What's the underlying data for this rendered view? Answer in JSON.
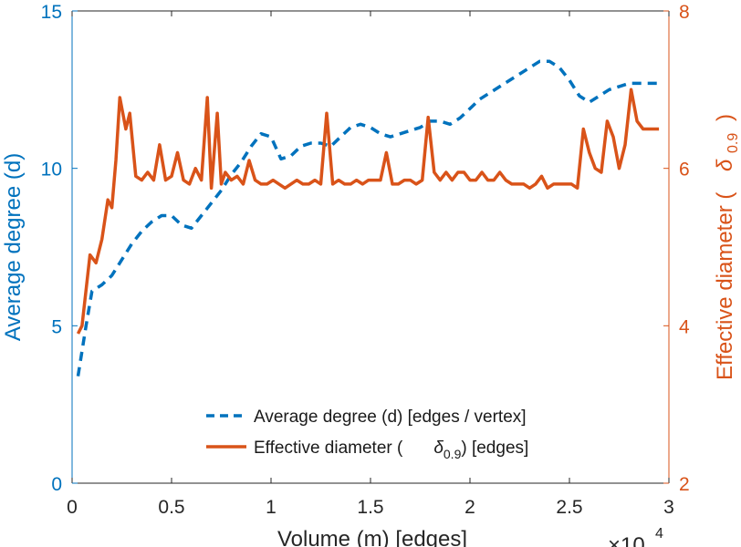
{
  "chart_data": {
    "type": "line",
    "xlabel": "Volume (m) [edges]",
    "x_exponent_label": "×10",
    "x_exponent_power": "4",
    "ylabel_left": "Average degree (d)",
    "ylabel_right": {
      "main": "Effective diameter (",
      "symbol": "δ",
      "subscript": "0.9",
      "close": ")"
    },
    "xlim": [
      0,
      30000
    ],
    "ylim_left": [
      0,
      15
    ],
    "ylim_right": [
      2,
      8
    ],
    "x_ticks": [
      0,
      5000,
      10000,
      15000,
      20000,
      25000,
      30000
    ],
    "x_tick_labels": [
      "0",
      "0.5",
      "1",
      "1.5",
      "2",
      "2.5",
      "3"
    ],
    "y_left_ticks": [
      0,
      5,
      10,
      15
    ],
    "y_left_tick_labels": [
      "0",
      "5",
      "10",
      "15"
    ],
    "y_right_ticks": [
      2,
      4,
      6,
      8
    ],
    "y_right_tick_labels": [
      "2",
      "4",
      "6",
      "8"
    ],
    "grid": false,
    "legend_position": "bottom-center",
    "colors": {
      "avg_degree": "#0072BD",
      "diameter": "#D95319",
      "axis_left": "#0072BD",
      "axis_right": "#D95319",
      "frame": "#262626"
    },
    "series": [
      {
        "name": "Average degree (d) [edges / vertex]",
        "axis": "left",
        "style": "dashed",
        "x": [
          300,
          700,
          1000,
          1500,
          2000,
          2500,
          3000,
          3500,
          4000,
          4500,
          5000,
          5500,
          6000,
          6500,
          7000,
          7500,
          8000,
          8500,
          9000,
          9500,
          10000,
          10500,
          11000,
          11500,
          12000,
          12500,
          13000,
          13500,
          14000,
          14500,
          15000,
          15500,
          16000,
          16500,
          17000,
          17500,
          18000,
          18500,
          19000,
          19500,
          20000,
          20500,
          21000,
          21500,
          22000,
          22500,
          23000,
          23500,
          24000,
          24500,
          25000,
          25500,
          26000,
          26500,
          27000,
          27500,
          28000,
          28500,
          29000,
          29500
        ],
        "y": [
          3.4,
          5.0,
          6.1,
          6.3,
          6.6,
          7.1,
          7.6,
          8.0,
          8.3,
          8.5,
          8.5,
          8.2,
          8.1,
          8.5,
          8.9,
          9.3,
          9.8,
          10.2,
          10.7,
          11.1,
          11.0,
          10.3,
          10.4,
          10.7,
          10.8,
          10.8,
          10.7,
          11.0,
          11.3,
          11.4,
          11.3,
          11.1,
          11.0,
          11.1,
          11.2,
          11.3,
          11.5,
          11.5,
          11.4,
          11.6,
          11.9,
          12.2,
          12.4,
          12.6,
          12.8,
          13.0,
          13.2,
          13.4,
          13.4,
          13.2,
          12.8,
          12.3,
          12.1,
          12.3,
          12.5,
          12.6,
          12.7,
          12.7,
          12.7,
          12.7
        ]
      },
      {
        "name": "Effective diameter (δ0.9) [edges]",
        "axis": "right",
        "style": "solid",
        "x": [
          300,
          500,
          900,
          1200,
          1500,
          1800,
          2000,
          2200,
          2400,
          2700,
          2900,
          3200,
          3500,
          3800,
          4100,
          4400,
          4700,
          5000,
          5300,
          5600,
          5900,
          6200,
          6500,
          6800,
          7000,
          7300,
          7500,
          7700,
          8000,
          8300,
          8600,
          8900,
          9200,
          9500,
          9800,
          10100,
          10400,
          10700,
          11000,
          11300,
          11600,
          11900,
          12200,
          12500,
          12800,
          13100,
          13400,
          13700,
          14000,
          14300,
          14600,
          14900,
          15200,
          15500,
          15800,
          16100,
          16400,
          16700,
          17000,
          17300,
          17600,
          17900,
          18200,
          18500,
          18800,
          19100,
          19400,
          19700,
          20000,
          20300,
          20600,
          20900,
          21200,
          21500,
          21800,
          22100,
          22400,
          22700,
          23000,
          23300,
          23600,
          23900,
          24200,
          24500,
          24800,
          25100,
          25400,
          25700,
          26000,
          26300,
          26600,
          26900,
          27200,
          27500,
          27800,
          28100,
          28400,
          28700,
          29000,
          29300,
          29500
        ],
        "y": [
          3.9,
          4.0,
          4.9,
          4.8,
          5.1,
          5.6,
          5.5,
          6.1,
          6.9,
          6.5,
          6.7,
          5.9,
          5.85,
          5.95,
          5.85,
          6.3,
          5.85,
          5.9,
          6.2,
          5.85,
          5.8,
          6.0,
          5.85,
          6.9,
          5.75,
          6.7,
          5.8,
          5.95,
          5.85,
          5.9,
          5.8,
          6.1,
          5.85,
          5.8,
          5.8,
          5.85,
          5.8,
          5.75,
          5.8,
          5.85,
          5.8,
          5.8,
          5.85,
          5.8,
          6.7,
          5.8,
          5.85,
          5.8,
          5.8,
          5.85,
          5.8,
          5.85,
          5.85,
          5.85,
          6.2,
          5.8,
          5.8,
          5.85,
          5.85,
          5.8,
          5.85,
          6.65,
          5.95,
          5.85,
          5.95,
          5.85,
          5.95,
          5.95,
          5.85,
          5.85,
          5.95,
          5.85,
          5.85,
          5.95,
          5.85,
          5.8,
          5.8,
          5.8,
          5.75,
          5.8,
          5.9,
          5.75,
          5.8,
          5.8,
          5.8,
          5.8,
          5.75,
          6.5,
          6.2,
          6.0,
          5.95,
          6.6,
          6.4,
          6.0,
          6.3,
          7.0,
          6.6,
          6.5,
          6.5,
          6.5,
          6.5
        ]
      }
    ]
  }
}
